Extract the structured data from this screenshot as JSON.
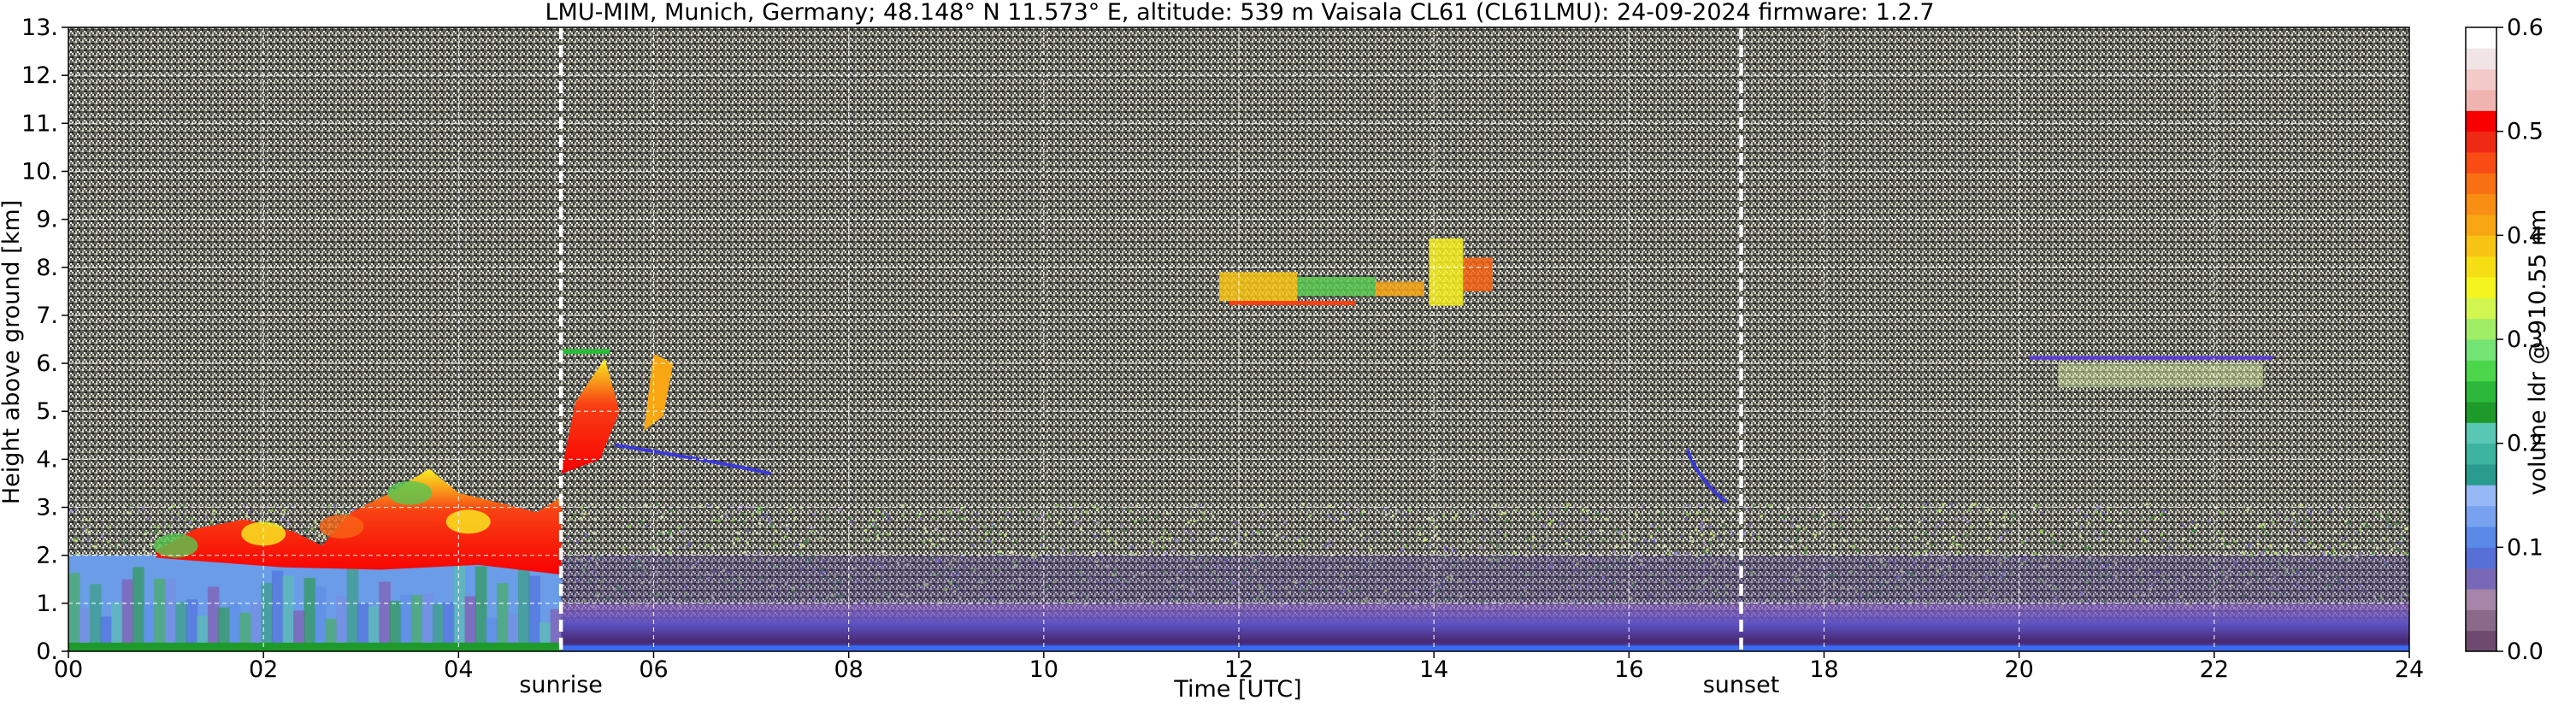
{
  "chart_data": {
    "type": "heatmap",
    "title": "LMU-MIM, Munich, Germany; 48.148° N 11.573° E, altitude: 539 m    Vaisala CL61 (CL61LMU): 24-09-2024    firmware: 1.2.7",
    "xlabel": "Time [UTC]",
    "ylabel": "Height above ground [km]",
    "xlim": [
      0,
      24
    ],
    "ylim": [
      0,
      13
    ],
    "x_ticks": [
      "00",
      "02",
      "04",
      "06",
      "08",
      "10",
      "12",
      "14",
      "16",
      "18",
      "20",
      "22",
      "24"
    ],
    "y_ticks": [
      "0.",
      "1.",
      "2.",
      "3.",
      "4.",
      "5.",
      "6.",
      "7.",
      "8.",
      "9.",
      "10.",
      "11.",
      "12.",
      "13."
    ],
    "grid": true,
    "markers": [
      {
        "label": "sunrise",
        "time": 5.05
      },
      {
        "label": "sunset",
        "time": 17.15
      }
    ],
    "colorbar": {
      "label": "volume ldr @ 910.55 nm",
      "ticks": [
        "0.0",
        "0.1",
        "0.2",
        "0.3",
        "0.4",
        "0.5",
        "0.6"
      ],
      "range": [
        0,
        0.6
      ],
      "colors": [
        "#6e4a6e",
        "#8a6a8a",
        "#a585a8",
        "#7868b8",
        "#5670d8",
        "#5a8ae8",
        "#78a2f0",
        "#96b8f6",
        "#2a9c8e",
        "#3cb4a0",
        "#58c8b4",
        "#1e9a2a",
        "#2cb83a",
        "#4cd64c",
        "#74e474",
        "#a0ee66",
        "#d2f650",
        "#f4f41e",
        "#f6de14",
        "#f8c414",
        "#f8a614",
        "#f88e14",
        "#f87014",
        "#f84c14",
        "#ee2a14",
        "#f80000",
        "#f0b4b0",
        "#f4cac8",
        "#f0e4e4",
        "#ffffff"
      ]
    },
    "features": [
      {
        "name": "near-surface layer",
        "start": 5.05,
        "end": 24.0,
        "base_km": 0.0,
        "top_km": 1.0,
        "ldr_range": [
          0.0,
          0.08
        ]
      },
      {
        "name": "residual / aerosol layer",
        "start": 0.0,
        "end": 5.05,
        "base_km": 0.0,
        "top_km": 2.0,
        "ldr_range": [
          0.05,
          0.2
        ]
      },
      {
        "name": "depolarising layer top",
        "start": 0.9,
        "end": 5.05,
        "base_km": 1.6,
        "top_km": 3.8,
        "ldr_range": [
          0.25,
          0.5
        ]
      },
      {
        "name": "mid-level cloud",
        "start": 5.0,
        "end": 6.3,
        "base_km": 3.6,
        "top_km": 6.3,
        "ldr_range": [
          0.3,
          0.45
        ]
      },
      {
        "name": "cirrus",
        "start": 11.7,
        "end": 14.6,
        "base_km": 7.0,
        "top_km": 9.0,
        "ldr_range": [
          0.2,
          0.45
        ]
      },
      {
        "name": "thin layer",
        "start": 20.1,
        "end": 22.6,
        "base_km": 5.5,
        "top_km": 6.2,
        "ldr_range": [
          0.05,
          0.3
        ]
      }
    ]
  }
}
